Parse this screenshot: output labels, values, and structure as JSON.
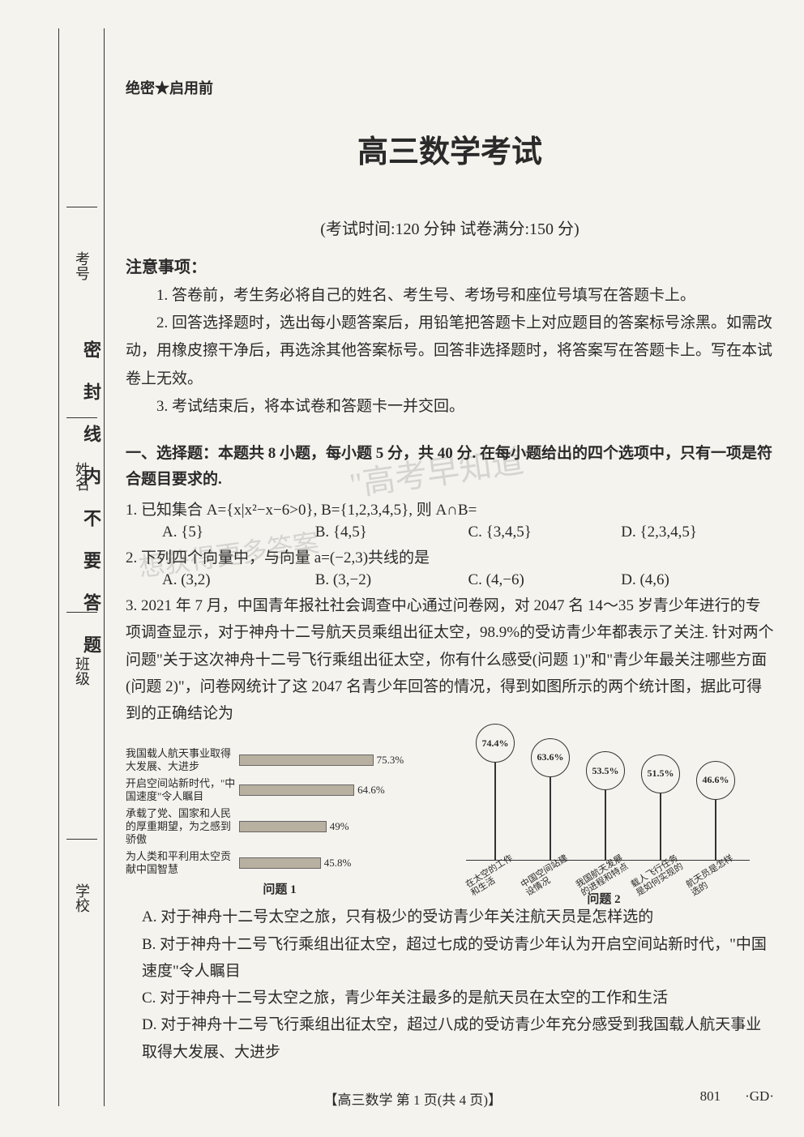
{
  "sidebar": {
    "labels": [
      "考号",
      "姓名",
      "班级",
      "学校"
    ],
    "vertical_text": "密封线内不要答题"
  },
  "header": {
    "classified": "绝密★启用前",
    "title": "高三数学考试",
    "subtitle": "(考试时间:120 分钟  试卷满分:150 分)"
  },
  "notice": {
    "header": "注意事项：",
    "items": [
      "1. 答卷前，考生务必将自己的姓名、考生号、考场号和座位号填写在答题卡上。",
      "2. 回答选择题时，选出每小题答案后，用铅笔把答题卡上对应题目的答案标号涂黑。如需改动，用橡皮擦干净后，再选涂其他答案标号。回答非选择题时，将答案写在答题卡上。写在本试卷上无效。",
      "3. 考试结束后，将本试卷和答题卡一并交回。"
    ]
  },
  "section1": {
    "header": "一、选择题：本题共 8 小题，每小题 5 分，共 40 分. 在每小题给出的四个选项中，只有一项是符合题目要求的."
  },
  "q1": {
    "stem": "1. 已知集合 A={x|x²−x−6>0}, B={1,2,3,4,5}, 则 A∩B=",
    "opts": {
      "a": "A. {5}",
      "b": "B. {4,5}",
      "c": "C. {3,4,5}",
      "d": "D. {2,3,4,5}"
    }
  },
  "q2": {
    "stem": "2. 下列四个向量中，与向量 a=(−2,3)共线的是",
    "opts": {
      "a": "A. (3,2)",
      "b": "B. (3,−2)",
      "c": "C. (4,−6)",
      "d": "D. (4,6)"
    }
  },
  "q3": {
    "stem1": "3. 2021 年 7 月，中国青年报社社会调查中心通过问卷网，对 2047 名 14～35 岁青少年进行的专项调查显示，对于神舟十二号航天员乘组出征太空，98.9%的受访青少年都表示了关注. 针对两个问题\"关于这次神舟十二号飞行乘组出征太空，你有什么感受(问题 1)\"和\"青少年最关注哪些方面(问题 2)\"，问卷网统计了这 2047 名青少年回答的情况，得到如图所示的两个统计图，据此可得到的正确结论为",
    "opts": {
      "a": "A. 对于神舟十二号太空之旅，只有极少的受访青少年关注航天员是怎样选的",
      "b": "B. 对于神舟十二号飞行乘组出征太空，超过七成的受访青少年认为开启空间站新时代，\"中国速度\"令人瞩目",
      "c": "C. 对于神舟十二号太空之旅，青少年关注最多的是航天员在太空的工作和生活",
      "d": "D. 对于神舟十二号飞行乘组出征太空，超过八成的受访青少年充分感受到我国载人航天事业取得大发展、大进步"
    }
  },
  "chart1": {
    "title": "问题 1",
    "bars": [
      {
        "label": "我国载人航天事业取得大发展、大进步",
        "value": 75.3,
        "text": "75.3%"
      },
      {
        "label": "开启空间站新时代，\"中国速度\"令人瞩目",
        "value": 64.6,
        "text": "64.6%"
      },
      {
        "label": "承载了党、国家和人民的厚重期望，为之感到骄傲",
        "value": 49,
        "text": "49%"
      },
      {
        "label": "为人类和平利用太空贡献中国智慧",
        "value": 45.8,
        "text": "45.8%"
      }
    ],
    "bar_color": "#b8b0a0",
    "max": 100
  },
  "chart2": {
    "title": "问题 2",
    "points": [
      {
        "label": "在太空的工作和生活",
        "value": 74.4,
        "text": "74.4%"
      },
      {
        "label": "中国空间站建设情况",
        "value": 63.6,
        "text": "63.6%"
      },
      {
        "label": "我国航天发展的进程和特点",
        "value": 53.5,
        "text": "53.5%"
      },
      {
        "label": "载人飞行任务是如何实现的",
        "value": 51.5,
        "text": "51.5%"
      },
      {
        "label": "航天员是怎样选的",
        "value": 46.6,
        "text": "46.6%"
      }
    ],
    "y_max": 80
  },
  "footer": {
    "center": "【高三数学  第 1 页(共 4 页)】",
    "code": "801",
    "gd": "·GD·"
  },
  "watermark": {
    "line1": "\"高考早知道\"",
    "line2": "想获得更多答案"
  }
}
